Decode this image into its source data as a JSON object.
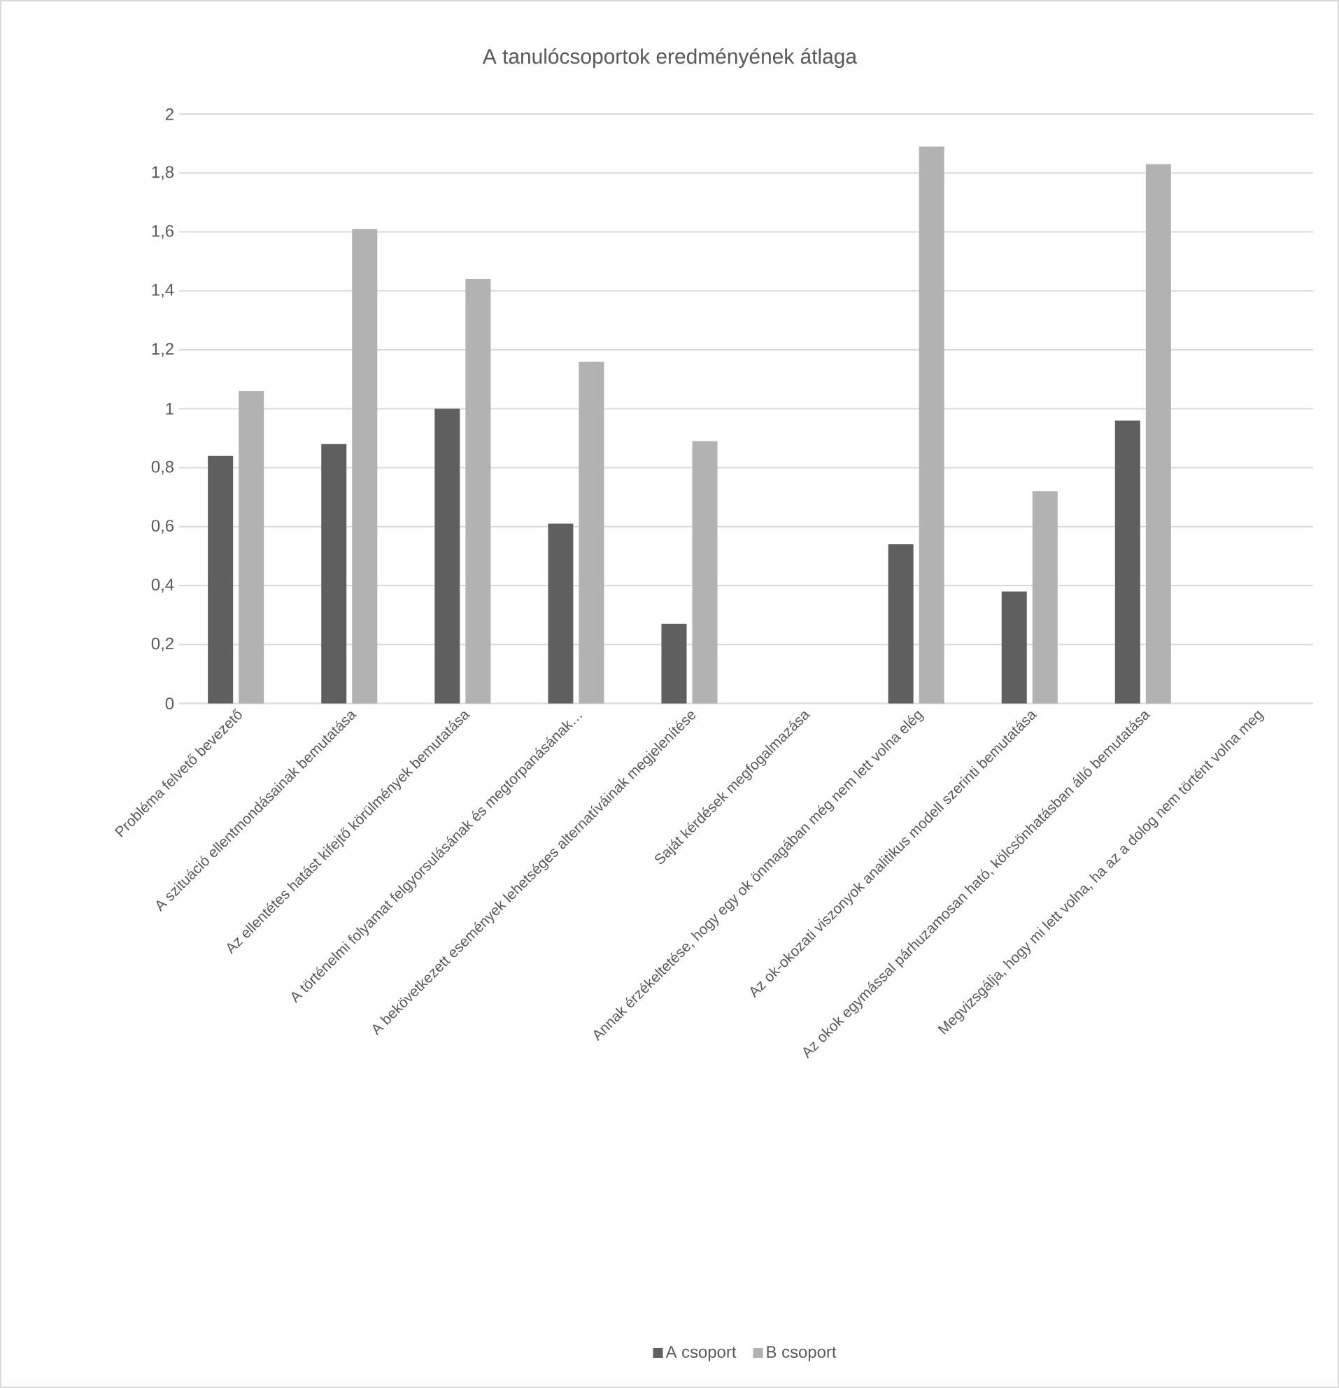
{
  "chart_data": {
    "type": "bar",
    "title": "A tanulócsoportok eredményének átlaga",
    "categories": [
      "Probléma felvető bevezető",
      "A szituáció ellentmondásainak bemutatása",
      "Az ellentétes hatást kifejtő körülmények bemutatása",
      "A történelmi folyamat felgyorsulásának és megtorpanásának…",
      "A bekövetkezett események lehetséges alternatíváinak megjelenítése",
      "Saját kérdések megfogalmazása",
      "Annak érzékeltetése, hogy egy ok önmagában még nem lett volna elég",
      "Az ok-okozati viszonyok analitikus modell szerinti bemutatása",
      "Az okok egymással párhuzamosan ható, kölcsönhatásban álló bemutatása",
      "Megvizsgálja, hogy mi lett volna, ha az a dolog nem történt volna meg"
    ],
    "series": [
      {
        "name": "A csoport",
        "color": "#5f5f5f",
        "values": [
          0.84,
          0.88,
          1.0,
          0.61,
          0.27,
          null,
          0.54,
          0.38,
          0.96,
          null
        ]
      },
      {
        "name": "B csoport",
        "color": "#b2b2b2",
        "values": [
          1.06,
          1.61,
          1.44,
          1.16,
          0.89,
          null,
          1.89,
          0.72,
          1.83,
          null
        ]
      }
    ],
    "ylim": [
      0,
      2
    ],
    "yticks": [
      0,
      {
        "value": 0.2,
        "label": "0,2"
      },
      {
        "value": 0.4,
        "label": "0,4"
      },
      {
        "value": 0.6,
        "label": "0,6"
      },
      {
        "value": 0.8,
        "label": "0,8"
      },
      1,
      {
        "value": 1.2,
        "label": "1,2"
      },
      {
        "value": 1.4,
        "label": "1,4"
      },
      {
        "value": 1.6,
        "label": "1,6"
      },
      {
        "value": 1.8,
        "label": "1,8"
      },
      2
    ],
    "grid": "y",
    "legend": "bottom"
  }
}
